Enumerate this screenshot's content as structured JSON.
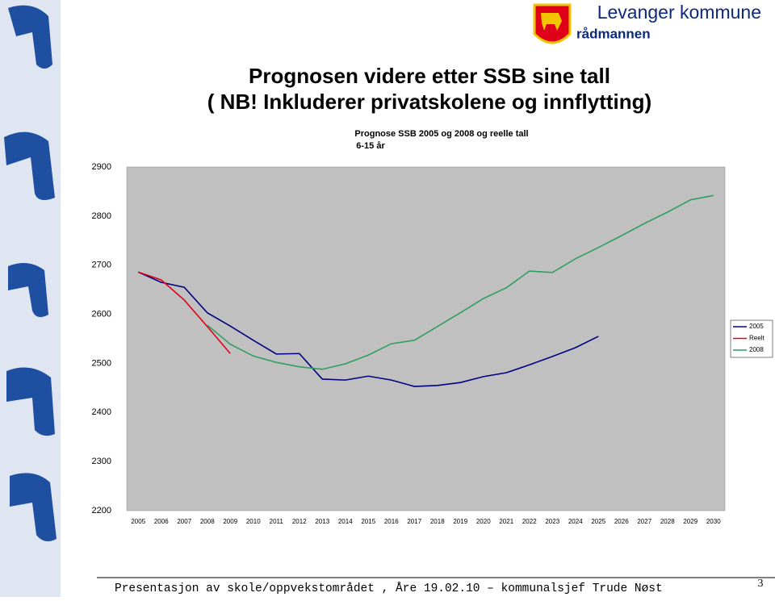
{
  "header": {
    "org": "Levanger kommune",
    "unit": "rådmannen"
  },
  "title": [
    "Prognosen videre etter SSB sine tall",
    "( NB! Inkluderer privatskolene og innflytting)"
  ],
  "chart_data": {
    "type": "line",
    "title": "Prognose SSB 2005 og 2008 og reelle tall",
    "subtitle": "6-15 år",
    "categories": [
      "2005",
      "2006",
      "2007",
      "2008",
      "2009",
      "2010",
      "2011",
      "2012",
      "2013",
      "2014",
      "2015",
      "2016",
      "2017",
      "2018",
      "2019",
      "2020",
      "2021",
      "2022",
      "2023",
      "2024",
      "2025",
      "2026",
      "2027",
      "2028",
      "2029",
      "2030"
    ],
    "series": [
      {
        "name": "2005",
        "color": "#000080",
        "values": [
          2686,
          2665,
          2655,
          2603,
          2576,
          2547,
          2519,
          2520,
          2468,
          2466,
          2474,
          2466,
          2453,
          2455,
          2461,
          2473,
          2481,
          2497,
          2514,
          2532,
          2555,
          null,
          null,
          null,
          null,
          null
        ]
      },
      {
        "name": "Reelt",
        "color": "#e0001a",
        "values": [
          2686,
          2670,
          2629,
          2575,
          2520,
          null,
          null,
          null,
          null,
          null,
          null,
          null,
          null,
          null,
          null,
          null,
          null,
          null,
          null,
          null,
          null,
          null,
          null,
          null,
          null,
          null
        ]
      },
      {
        "name": "2008",
        "color": "#2e9e5e",
        "values": [
          null,
          null,
          null,
          2578,
          2539,
          2515,
          2502,
          2493,
          2488,
          2499,
          2517,
          2540,
          2547,
          2575,
          2603,
          2632,
          2654,
          2688,
          2685,
          2713,
          2736,
          2760,
          2785,
          2808,
          2833,
          2842
        ]
      }
    ],
    "ylim": [
      2200,
      2900
    ],
    "yticks": [
      2200,
      2300,
      2400,
      2500,
      2600,
      2700,
      2800,
      2900
    ],
    "grid": false,
    "legend": "right",
    "plot_color": "#c0c0c0"
  },
  "footer": {
    "text": "Presentasjon av skole/oppvekstområdet , Åre 19.02.10 – kommunalsjef Trude Nøst",
    "page": "3"
  }
}
